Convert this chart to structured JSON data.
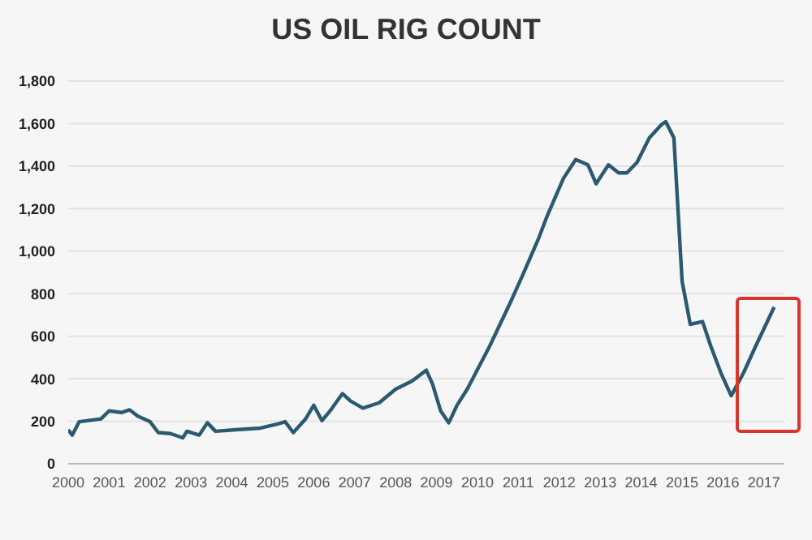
{
  "chart_data": {
    "type": "line",
    "title": "US OIL RIG COUNT",
    "x": [
      2000.0,
      2000.1,
      2000.27,
      2000.8,
      2001.0,
      2001.3,
      2001.5,
      2001.7,
      2002.0,
      2002.2,
      2002.5,
      2002.8,
      2002.9,
      2003.2,
      2003.4,
      2003.6,
      2004.1,
      2004.7,
      2005.1,
      2005.3,
      2005.5,
      2005.8,
      2006.0,
      2006.2,
      2006.4,
      2006.7,
      2006.9,
      2007.2,
      2007.6,
      2008.0,
      2008.4,
      2008.75,
      2008.9,
      2009.1,
      2009.3,
      2009.5,
      2009.75,
      2010.3,
      2010.8,
      2011.1,
      2011.5,
      2011.7,
      2012.1,
      2012.4,
      2012.7,
      2012.9,
      2013.2,
      2013.45,
      2013.65,
      2013.9,
      2014.2,
      2014.5,
      2014.6,
      2014.8,
      2015.0,
      2015.2,
      2015.5,
      2015.7,
      2015.95,
      2016.2,
      2016.5,
      2016.8,
      2017.25
    ],
    "series": [
      {
        "color": "#2b5a70",
        "values": [
          160,
          135,
          198,
          211,
          249,
          241,
          254,
          224,
          198,
          147,
          142,
          122,
          153,
          135,
          193,
          153,
          160,
          168,
          186,
          198,
          147,
          211,
          275,
          203,
          249,
          330,
          295,
          262,
          287,
          351,
          389,
          440,
          376,
          249,
          193,
          275,
          351,
          554,
          757,
          885,
          1063,
          1164,
          1342,
          1431,
          1406,
          1317,
          1406,
          1368,
          1368,
          1418,
          1533,
          1596,
          1609,
          1533,
          859,
          656,
          669,
          554,
          427,
          320,
          427,
          554,
          737
        ]
      }
    ],
    "xlim": [
      2000,
      2017.5
    ],
    "xticks": [
      2000,
      2001,
      2002,
      2003,
      2004,
      2005,
      2006,
      2007,
      2008,
      2009,
      2010,
      2011,
      2012,
      2013,
      2014,
      2015,
      2016,
      2017
    ],
    "ylim": [
      0,
      1800
    ],
    "yticks": [
      0,
      {
        "value": 200,
        "label": "200"
      },
      {
        "value": 400,
        "label": "400"
      },
      {
        "value": 600,
        "label": "600"
      },
      {
        "value": 800,
        "label": "800"
      },
      {
        "value": 1000,
        "label": "1,000"
      },
      {
        "value": 1200,
        "label": "1,200"
      },
      {
        "value": 1400,
        "label": "1,400"
      },
      {
        "value": 1600,
        "label": "1,600"
      },
      {
        "value": 1800,
        "label": "1,800"
      }
    ],
    "grid": "y",
    "marker": "none",
    "line_style": "solid"
  }
}
